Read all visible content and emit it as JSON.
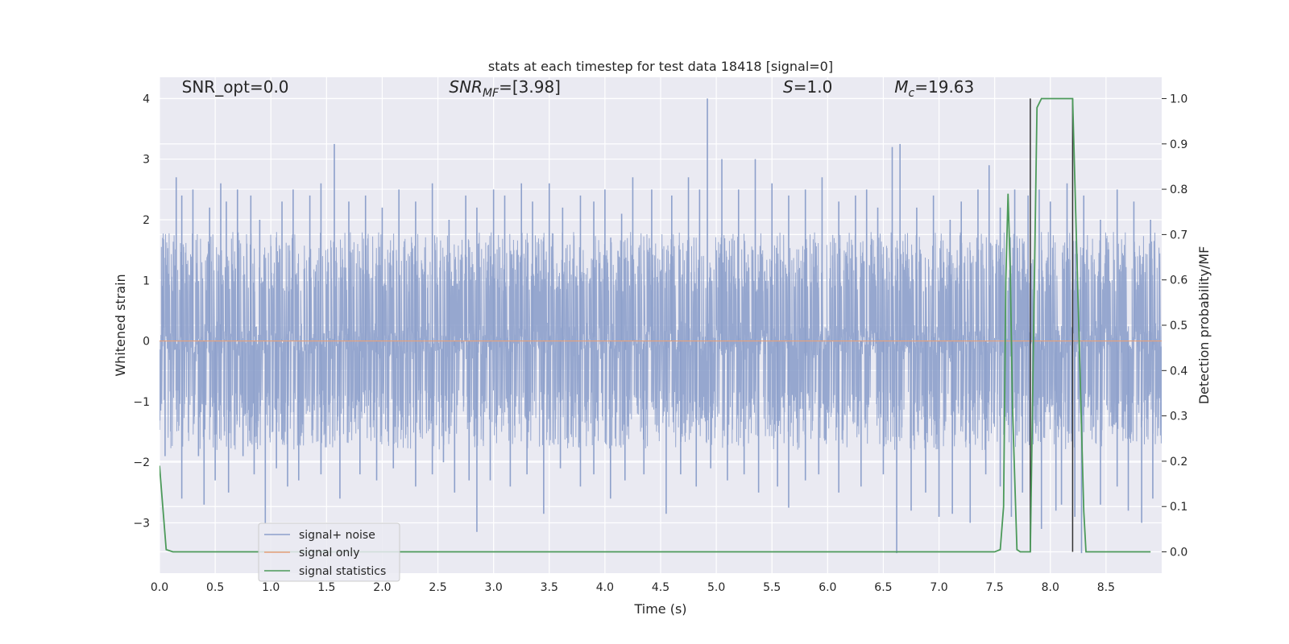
{
  "chart_data": {
    "type": "line",
    "title": "stats at each timestep for test data 18418 [signal=0]",
    "xlabel": "Time (s)",
    "ylabel": "Whitened strain",
    "y2label": "Detection probability/MF",
    "xlim": [
      0.0,
      9.0
    ],
    "ylim": [
      -3.83,
      4.35
    ],
    "y2lim": [
      -0.047,
      1.047
    ],
    "xticks": [
      0.0,
      0.5,
      1.0,
      1.5,
      2.0,
      2.5,
      3.0,
      3.5,
      4.0,
      4.5,
      5.0,
      5.5,
      6.0,
      6.5,
      7.0,
      7.5,
      8.0,
      8.5
    ],
    "xtick_labels": [
      "0.0",
      "0.5",
      "1.0",
      "1.5",
      "2.0",
      "2.5",
      "3.0",
      "3.5",
      "4.0",
      "4.5",
      "5.0",
      "5.5",
      "6.0",
      "6.5",
      "7.0",
      "7.5",
      "8.0",
      "8.5"
    ],
    "yticks": [
      4,
      3,
      2,
      1,
      0,
      -1,
      -2,
      -3
    ],
    "ytick_labels": [
      "4",
      "3",
      "2",
      "1",
      "0",
      "−1",
      "−2",
      "−3"
    ],
    "y2ticks": [
      1.0,
      0.9,
      0.8,
      0.7,
      0.6,
      0.5,
      0.4,
      0.3,
      0.2,
      0.1,
      0.0
    ],
    "y2tick_labels": [
      "1.0",
      "0.9",
      "0.8",
      "0.7",
      "0.6",
      "0.5",
      "0.4",
      "0.3",
      "0.2",
      "0.1",
      "0.0"
    ],
    "grid": true,
    "legend_position": "lower-left",
    "annotations": [
      {
        "text": "SNR_opt=0.0",
        "x": 0.2,
        "y": 4.1
      },
      {
        "text": "SNR_MF=[3.98]",
        "x": 2.6,
        "y": 4.1
      },
      {
        "text": "S=1.0",
        "x": 5.6,
        "y": 4.1
      },
      {
        "text": "M_c=19.63",
        "x": 6.6,
        "y": 4.1
      }
    ],
    "series": [
      {
        "name": "signal+ noise",
        "color": "#8da0cb",
        "axis": "left",
        "style": "noise",
        "envelope_upper_typical": 1.8,
        "envelope_lower_typical": -1.8,
        "spikes": [
          [
            0.03,
            1.7
          ],
          [
            0.15,
            2.7
          ],
          [
            0.2,
            2.4
          ],
          [
            0.3,
            2.5
          ],
          [
            0.45,
            2.2
          ],
          [
            0.55,
            2.6
          ],
          [
            0.6,
            2.3
          ],
          [
            0.7,
            2.5
          ],
          [
            0.82,
            2.4
          ],
          [
            0.9,
            2.0
          ],
          [
            1.1,
            2.3
          ],
          [
            1.2,
            2.5
          ],
          [
            1.35,
            2.4
          ],
          [
            1.45,
            2.6
          ],
          [
            1.57,
            3.25
          ],
          [
            1.7,
            2.3
          ],
          [
            1.85,
            2.4
          ],
          [
            2.0,
            2.2
          ],
          [
            2.15,
            2.5
          ],
          [
            2.3,
            2.3
          ],
          [
            2.45,
            2.6
          ],
          [
            2.6,
            2.0
          ],
          [
            2.75,
            2.4
          ],
          [
            2.85,
            2.2
          ],
          [
            3.0,
            2.5
          ],
          [
            3.1,
            2.4
          ],
          [
            3.25,
            2.6
          ],
          [
            3.35,
            2.3
          ],
          [
            3.5,
            2.6
          ],
          [
            3.62,
            2.2
          ],
          [
            3.78,
            2.4
          ],
          [
            3.9,
            2.3
          ],
          [
            4.0,
            2.5
          ],
          [
            4.15,
            2.1
          ],
          [
            4.25,
            2.7
          ],
          [
            4.42,
            2.5
          ],
          [
            4.6,
            2.4
          ],
          [
            4.75,
            2.7
          ],
          [
            4.85,
            2.5
          ],
          [
            4.92,
            4.0
          ],
          [
            5.05,
            3.0
          ],
          [
            5.2,
            2.5
          ],
          [
            5.35,
            3.0
          ],
          [
            5.5,
            2.6
          ],
          [
            5.65,
            2.4
          ],
          [
            5.8,
            2.5
          ],
          [
            5.95,
            2.7
          ],
          [
            6.1,
            2.3
          ],
          [
            6.25,
            2.4
          ],
          [
            6.35,
            2.5
          ],
          [
            6.45,
            2.2
          ],
          [
            6.58,
            3.2
          ],
          [
            6.65,
            3.25
          ],
          [
            6.8,
            2.2
          ],
          [
            6.95,
            2.4
          ],
          [
            7.1,
            2.0
          ],
          [
            7.2,
            2.3
          ],
          [
            7.35,
            2.5
          ],
          [
            7.45,
            2.9
          ],
          [
            7.55,
            2.2
          ],
          [
            7.68,
            2.5
          ],
          [
            7.8,
            2.4
          ],
          [
            7.9,
            2.5
          ],
          [
            8.0,
            2.3
          ],
          [
            8.15,
            2.6
          ],
          [
            8.3,
            2.4
          ],
          [
            8.45,
            2.0
          ],
          [
            8.6,
            2.5
          ],
          [
            8.75,
            2.3
          ],
          [
            8.9,
            2.0
          ],
          [
            0.05,
            -1.9
          ],
          [
            0.2,
            -2.6
          ],
          [
            0.35,
            -1.9
          ],
          [
            0.4,
            -2.7
          ],
          [
            0.5,
            -2.3
          ],
          [
            0.62,
            -2.5
          ],
          [
            0.75,
            -1.9
          ],
          [
            0.85,
            -2.2
          ],
          [
            0.95,
            -3.0
          ],
          [
            1.05,
            -2.1
          ],
          [
            1.15,
            -2.4
          ],
          [
            1.25,
            -2.3
          ],
          [
            1.45,
            -2.2
          ],
          [
            1.62,
            -2.6
          ],
          [
            1.8,
            -2.2
          ],
          [
            1.95,
            -2.3
          ],
          [
            2.1,
            -2.1
          ],
          [
            2.3,
            -2.4
          ],
          [
            2.45,
            -2.2
          ],
          [
            2.55,
            -2.0
          ],
          [
            2.65,
            -2.5
          ],
          [
            2.78,
            -2.3
          ],
          [
            2.85,
            -3.15
          ],
          [
            2.97,
            -2.3
          ],
          [
            3.15,
            -2.4
          ],
          [
            3.3,
            -2.2
          ],
          [
            3.45,
            -2.85
          ],
          [
            3.6,
            -2.1
          ],
          [
            3.78,
            -2.4
          ],
          [
            3.9,
            -2.2
          ],
          [
            4.05,
            -2.6
          ],
          [
            4.18,
            -2.3
          ],
          [
            4.35,
            -2.2
          ],
          [
            4.55,
            -2.85
          ],
          [
            4.68,
            -2.2
          ],
          [
            4.82,
            -2.4
          ],
          [
            4.95,
            -2.1
          ],
          [
            5.1,
            -2.3
          ],
          [
            5.25,
            -2.2
          ],
          [
            5.38,
            -2.5
          ],
          [
            5.55,
            -2.4
          ],
          [
            5.65,
            -2.75
          ],
          [
            5.8,
            -2.3
          ],
          [
            5.92,
            -2.2
          ],
          [
            6.1,
            -2.5
          ],
          [
            6.3,
            -2.4
          ],
          [
            6.5,
            -2.2
          ],
          [
            6.62,
            -3.5
          ],
          [
            6.75,
            -2.8
          ],
          [
            6.88,
            -2.5
          ],
          [
            7.0,
            -2.9
          ],
          [
            7.12,
            -2.85
          ],
          [
            7.28,
            -3.0
          ],
          [
            7.42,
            -2.2
          ],
          [
            7.55,
            -2.4
          ],
          [
            7.65,
            -2.9
          ],
          [
            7.75,
            -2.5
          ],
          [
            7.92,
            -3.1
          ],
          [
            8.05,
            -2.8
          ],
          [
            8.1,
            -2.7
          ],
          [
            8.22,
            -2.9
          ],
          [
            8.28,
            -3.5
          ],
          [
            8.45,
            -2.7
          ],
          [
            8.6,
            -2.4
          ],
          [
            8.7,
            -2.8
          ],
          [
            8.82,
            -3.0
          ],
          [
            8.92,
            -2.6
          ]
        ]
      },
      {
        "name": "signal only",
        "color": "#e5a07a",
        "axis": "left",
        "x": [
          0.0,
          9.0
        ],
        "y": [
          0.0,
          0.0
        ]
      },
      {
        "name": "signal statistics",
        "color": "#4c9a5a",
        "axis": "right",
        "x": [
          0.0,
          0.06,
          0.12,
          7.0,
          7.5,
          7.55,
          7.58,
          7.6,
          7.62,
          7.64,
          7.66,
          7.7,
          7.73,
          7.78,
          7.8,
          7.82,
          7.88,
          7.92,
          8.0,
          8.1,
          8.2,
          8.3,
          8.32,
          8.9
        ],
        "y": [
          0.19,
          0.005,
          0.0,
          0.0,
          0.0,
          0.005,
          0.1,
          0.6,
          0.79,
          0.62,
          0.32,
          0.005,
          0.0,
          0.0,
          0.0,
          0.0,
          0.98,
          1.0,
          1.0,
          1.0,
          1.0,
          0.09,
          0.0,
          0.0
        ]
      }
    ],
    "vertical_markers": [
      {
        "x": 7.82,
        "y_top": 4.0,
        "y_bottom": 0.0,
        "color": "#333333"
      },
      {
        "x": 8.2,
        "y_top": 4.0,
        "y_bottom": 0.0,
        "color": "#333333"
      }
    ]
  }
}
